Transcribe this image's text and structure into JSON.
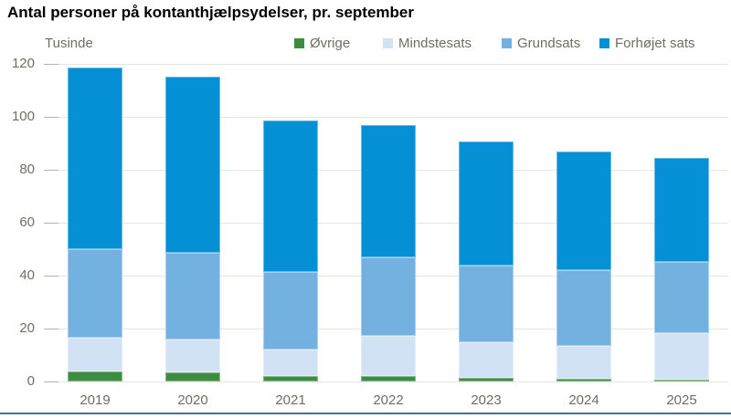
{
  "title": "Antal personer på kontanthjælpsydelser, pr. september",
  "colors": {
    "background": "#ffffff",
    "title_text": "#000000",
    "axis_text": "#6e6e64",
    "gridline": "#e6e6df",
    "tick_dash": "#b5b5ab",
    "bottom_rule": "#41719c"
  },
  "chart_data": {
    "type": "bar",
    "stacked": true,
    "title": "Antal personer på kontanthjælpsydelser, pr. september",
    "ylabel": "Tusinde",
    "xlabel": "",
    "ylim": [
      0,
      120
    ],
    "yticks": [
      0,
      20,
      40,
      60,
      80,
      100,
      120
    ],
    "grid": "horizontal",
    "legend_position": "top",
    "categories": [
      "2019",
      "2020",
      "2021",
      "2022",
      "2023",
      "2024",
      "2025"
    ],
    "series": [
      {
        "key": "ovrige",
        "name": "Øvrige",
        "color": "#3d8c42",
        "values": [
          3.9,
          3.4,
          2.3,
          2.3,
          1.5,
          1.0,
          0.7
        ]
      },
      {
        "key": "mindstesats",
        "name": "Mindstesats",
        "color": "#d2e2f5",
        "values": [
          12.8,
          12.5,
          9.8,
          14.9,
          13.3,
          12.7,
          17.6
        ]
      },
      {
        "key": "grundsats",
        "name": "Grundsats",
        "color": "#72b1e0",
        "values": [
          33.4,
          32.7,
          29.5,
          29.6,
          29.2,
          28.6,
          27.1
        ]
      },
      {
        "key": "forhojet-sats",
        "name": "Forhøjet sats",
        "color": "#0590d5",
        "values": [
          68.4,
          66.6,
          56.9,
          50.1,
          46.8,
          44.7,
          39.1
        ]
      }
    ],
    "totals": [
      118.5,
      115.2,
      98.5,
      96.9,
      90.8,
      87.0,
      84.5
    ]
  }
}
